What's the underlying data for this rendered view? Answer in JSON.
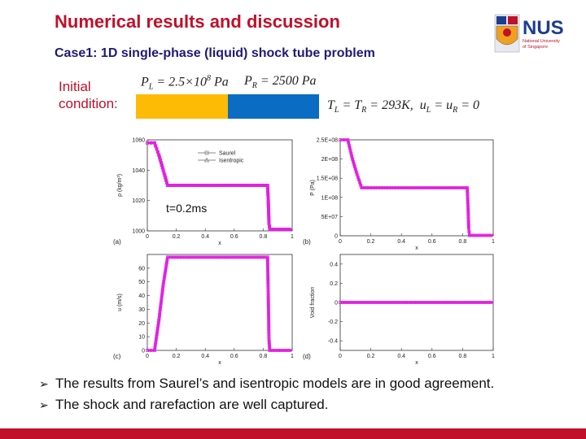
{
  "slide": {
    "title": "Numerical results and discussion",
    "subtitle": "Case1: 1D single-phase (liquid) shock tube problem",
    "initial_condition_label_1": "Initial",
    "initial_condition_label_2": "condition:",
    "eq_pl": "P_L = 2.5×10^8 Pa",
    "eq_pr": "P_R = 2500 Pa",
    "eq_t": "T_L = T_R = 293K,  u_L = u_R = 0",
    "time_label": "t=0.2ms",
    "bullets": [
      "The results from Saurel’s and isentropic models are in good agreement.",
      "The shock and rarefaction are well captured."
    ]
  },
  "logo": {
    "name": "NUS",
    "line1": "National University",
    "line2": "of Singapore"
  },
  "colors": {
    "title": "#c0102a",
    "subtitle": "#1e1a78",
    "left_state": "#fdbb06",
    "right_state": "#0a6cc2",
    "series": "#e020e0"
  },
  "chart_data": [
    {
      "type": "line",
      "panel": "(a)",
      "xlabel": "x",
      "ylabel": "ρ (kg/m³)",
      "xlim": [
        0,
        1
      ],
      "ylim": [
        1000,
        1060
      ],
      "xticks": [
        "0",
        "0.2",
        "0.4",
        "0.6",
        "0.8",
        "1"
      ],
      "yticks": [
        "1000",
        "1020",
        "1040",
        "1060"
      ],
      "legend": [
        "Saurel",
        "Isentropic"
      ],
      "series": [
        {
          "name": "Saurel",
          "x": [
            0,
            0.05,
            0.08,
            0.11,
            0.14,
            0.3,
            0.6,
            0.83,
            0.835,
            0.84,
            0.845,
            1
          ],
          "y": [
            1058,
            1058,
            1050,
            1040,
            1030,
            1030,
            1030,
            1030,
            1020,
            1005,
            1001,
            1001
          ]
        },
        {
          "name": "Isentropic",
          "x": [
            0,
            0.05,
            0.08,
            0.11,
            0.14,
            0.3,
            0.6,
            0.83,
            0.835,
            0.84,
            0.845,
            1
          ],
          "y": [
            1058,
            1058,
            1050,
            1040,
            1030,
            1030,
            1030,
            1030,
            1020,
            1005,
            1001,
            1001
          ]
        }
      ]
    },
    {
      "type": "line",
      "panel": "(b)",
      "xlabel": "x",
      "ylabel": "P (Pa)",
      "xlim": [
        0,
        1
      ],
      "ylim": [
        0,
        250000000
      ],
      "xticks": [
        "0",
        "0.2",
        "0.4",
        "0.6",
        "0.8",
        "1"
      ],
      "yticks": [
        "0",
        "5E+07",
        "1E+08",
        "1.5E+08",
        "2E+08",
        "2.5E+08"
      ],
      "series": [
        {
          "name": "Saurel",
          "x": [
            0,
            0.05,
            0.08,
            0.11,
            0.14,
            0.3,
            0.6,
            0.83,
            0.835,
            0.84,
            0.845,
            1
          ],
          "y": [
            250000000,
            250000000,
            200000000,
            160000000,
            125000000,
            125000000,
            125000000,
            125000000,
            80000000,
            20000000,
            1000000,
            1000000
          ]
        }
      ]
    },
    {
      "type": "line",
      "panel": "(c)",
      "xlabel": "x",
      "ylabel": "u (m/s)",
      "xlim": [
        0,
        1
      ],
      "ylim": [
        0,
        70
      ],
      "xticks": [
        "0",
        "0.2",
        "0.4",
        "0.6",
        "0.8",
        "1"
      ],
      "yticks": [
        "0",
        "10",
        "20",
        "30",
        "40",
        "50",
        "60"
      ],
      "series": [
        {
          "name": "Saurel",
          "x": [
            0,
            0.05,
            0.08,
            0.11,
            0.14,
            0.3,
            0.6,
            0.83,
            0.835,
            0.84,
            0.845,
            1
          ],
          "y": [
            0,
            0,
            22,
            48,
            68,
            68,
            68,
            68,
            40,
            8,
            0,
            0
          ]
        }
      ]
    },
    {
      "type": "line",
      "panel": "(d)",
      "xlabel": "x",
      "ylabel": "Void fraction",
      "xlim": [
        0,
        1
      ],
      "ylim": [
        -0.5,
        0.5
      ],
      "xticks": [
        "0",
        "0.2",
        "0.4",
        "0.6",
        "0.8",
        "1"
      ],
      "yticks": [
        "-0.4",
        "-0.2",
        "0",
        "0.2",
        "0.4"
      ],
      "series": [
        {
          "name": "Saurel",
          "x": [
            0,
            1
          ],
          "y": [
            0,
            0
          ]
        }
      ]
    }
  ]
}
